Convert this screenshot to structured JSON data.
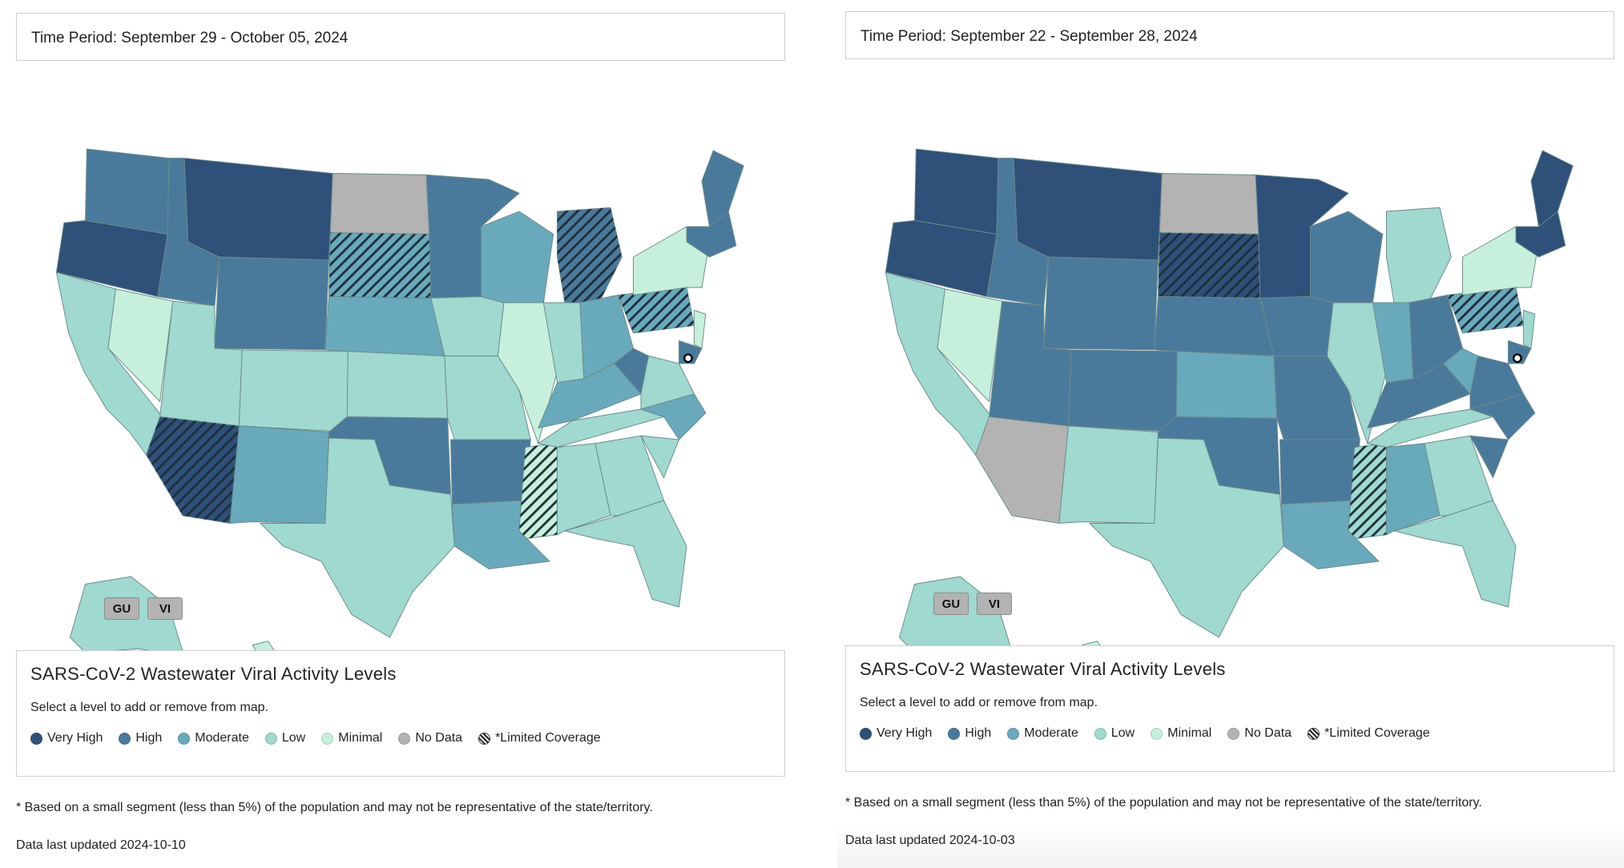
{
  "colors": {
    "very_high": "#2f5079",
    "high": "#4a7a9b",
    "moderate": "#68aabb",
    "low": "#9fd9cf",
    "minimal": "#c7f0dc",
    "no_data": "#b3b3b3",
    "border": "#6b8a8a"
  },
  "panels": [
    {
      "period": "Time Period: September 29 - October 05, 2024",
      "territories": [
        {
          "label": "GU"
        },
        {
          "label": "VI"
        }
      ],
      "legend_title": "SARS-CoV-2 Wastewater Viral Activity Levels",
      "legend_subtitle": "Select a level to add or remove from map.",
      "footnote": "* Based on a small segment (less than 5%) of the population and may not be representative of the state/territory.",
      "updated": "Data last updated 2024-10-10",
      "states": {
        "WA": "high",
        "OR": "very_high",
        "CA": "low",
        "NV": "minimal",
        "ID": "high",
        "MT": "very_high",
        "WY": "high",
        "UT": "low",
        "AZ": "very_high*",
        "CO": "low",
        "NM": "moderate",
        "ND": "no_data",
        "SD": "moderate*",
        "NE": "moderate",
        "KS": "low",
        "OK": "high",
        "TX": "low",
        "MN": "high",
        "IA": "low",
        "MO": "low",
        "AR": "high",
        "LA": "moderate",
        "WI": "moderate",
        "IL": "minimal",
        "MS": "minimal*",
        "MI": "high*",
        "IN": "low",
        "KY": "moderate",
        "TN": "low",
        "AL": "low",
        "OH": "moderate",
        "GA": "low",
        "FL": "low",
        "WV": "high",
        "VA": "low",
        "NC": "moderate",
        "SC": "low",
        "PA": "moderate*",
        "NY": "minimal",
        "ME": "high",
        "NE_STATES": "high",
        "NJ": "minimal",
        "MD": "high",
        "AK": "low",
        "HI": "minimal"
      }
    },
    {
      "period": "Time Period: September 22 - September 28, 2024",
      "territories": [
        {
          "label": "GU"
        },
        {
          "label": "VI"
        }
      ],
      "legend_title": "SARS-CoV-2 Wastewater Viral Activity Levels",
      "legend_subtitle": "Select a level to add or remove from map.",
      "footnote": "* Based on a small segment (less than 5%) of the population and may not be representative of the state/territory.",
      "updated": "Data last updated 2024-10-03",
      "states": {
        "WA": "very_high",
        "OR": "very_high",
        "CA": "low",
        "NV": "minimal",
        "ID": "high",
        "MT": "very_high",
        "WY": "high",
        "UT": "high",
        "AZ": "no_data",
        "CO": "high",
        "NM": "low",
        "ND": "no_data",
        "SD": "very_high*",
        "NE": "high",
        "KS": "moderate",
        "OK": "high",
        "TX": "low",
        "MN": "very_high",
        "IA": "high",
        "MO": "high",
        "AR": "high",
        "LA": "moderate",
        "WI": "high",
        "IL": "low",
        "MS": "low*",
        "MI": "low",
        "IN": "moderate",
        "KY": "high",
        "TN": "low",
        "AL": "moderate",
        "OH": "high",
        "GA": "low",
        "FL": "low",
        "WV": "moderate",
        "VA": "high",
        "NC": "high",
        "SC": "high",
        "PA": "moderate*",
        "NY": "minimal",
        "ME": "very_high",
        "NE_STATES": "very_high",
        "NJ": "low",
        "MD": "high",
        "AK": "low",
        "HI": "minimal"
      }
    }
  ],
  "legend": [
    {
      "key": "very_high",
      "label": "Very High"
    },
    {
      "key": "high",
      "label": "High"
    },
    {
      "key": "moderate",
      "label": "Moderate"
    },
    {
      "key": "low",
      "label": "Low"
    },
    {
      "key": "minimal",
      "label": "Minimal"
    },
    {
      "key": "no_data",
      "label": "No Data"
    },
    {
      "key": "limited",
      "label": "*Limited Coverage"
    }
  ]
}
